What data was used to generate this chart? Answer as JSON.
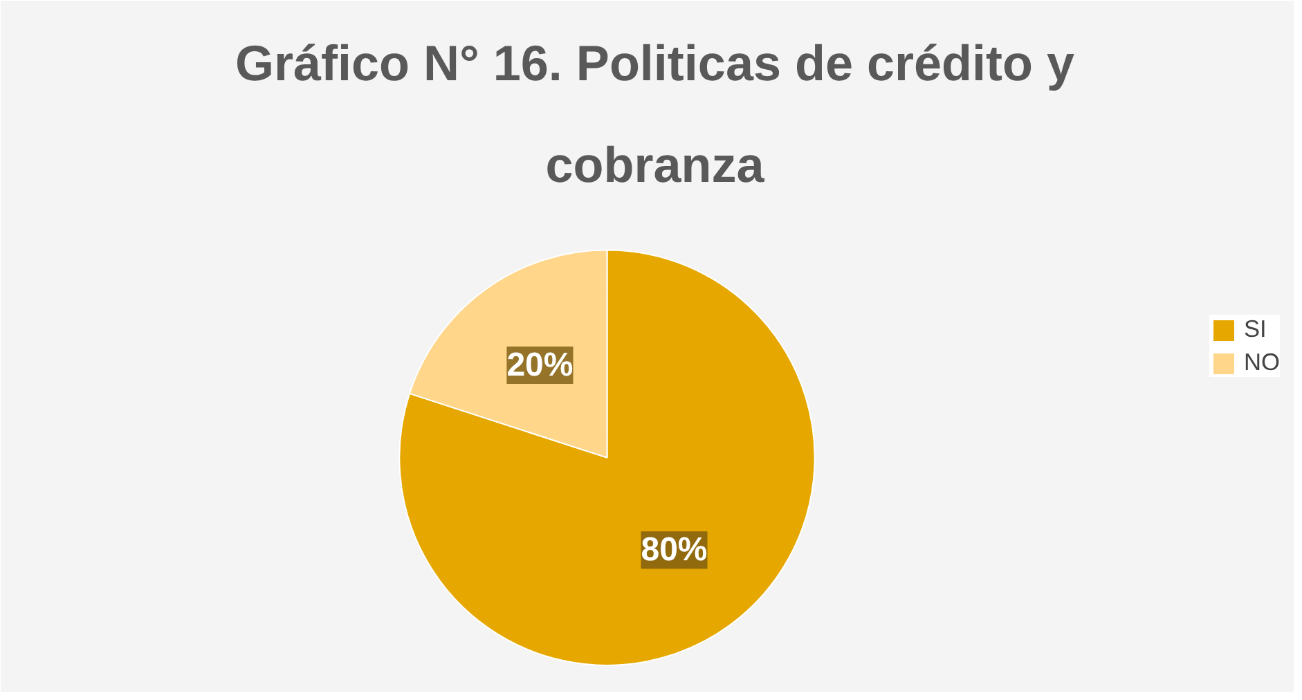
{
  "chart_data": {
    "type": "pie",
    "title": "Gráfico N° 16. Politicas de crédito y cobranza",
    "categories": [
      "SI",
      "NO"
    ],
    "values": [
      80,
      20
    ],
    "colors": [
      "#e6a800",
      "#ffd68a"
    ],
    "value_labels": [
      "80%",
      "20%"
    ],
    "legend": "right"
  }
}
